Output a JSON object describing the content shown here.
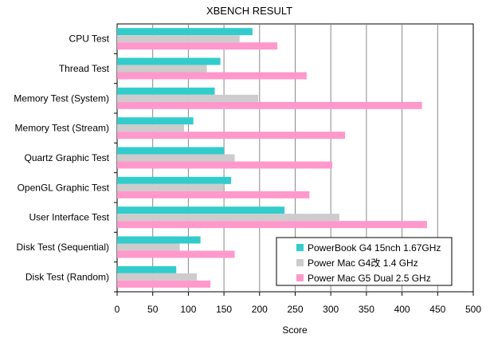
{
  "chart_data": {
    "type": "bar",
    "orientation": "horizontal",
    "title": "XBENCH RESULT",
    "xlabel": "Score",
    "ylabel": "",
    "xlim": [
      0,
      500
    ],
    "xticks": [
      0,
      50,
      100,
      150,
      200,
      250,
      300,
      350,
      400,
      450,
      500
    ],
    "grid": true,
    "legend_position": "bottom-right",
    "categories": [
      "CPU Test",
      "Thread Test",
      "Memory Test (System)",
      "Memory Test (Stream)",
      "Quartz Graphic Test",
      "OpenGL Graphic Test",
      "User Interface Test",
      "Disk Test  (Sequential)",
      "Disk Test  (Random)"
    ],
    "series": [
      {
        "name": "PowerBook G4 15nch 1.67GHz",
        "color": "#33cccc",
        "values": [
          190,
          145,
          137,
          107,
          150,
          160,
          235,
          117,
          83
        ]
      },
      {
        "name": "Power Mac G4改 1.4 GHz",
        "color": "#cccccc",
        "values": [
          172,
          126,
          198,
          94,
          165,
          149,
          312,
          88,
          112
        ]
      },
      {
        "name": "Power Mac G5 Dual 2.5 GHz",
        "color": "#ff99cc",
        "values": [
          225,
          266,
          428,
          320,
          302,
          270,
          435,
          165,
          131
        ]
      }
    ]
  }
}
